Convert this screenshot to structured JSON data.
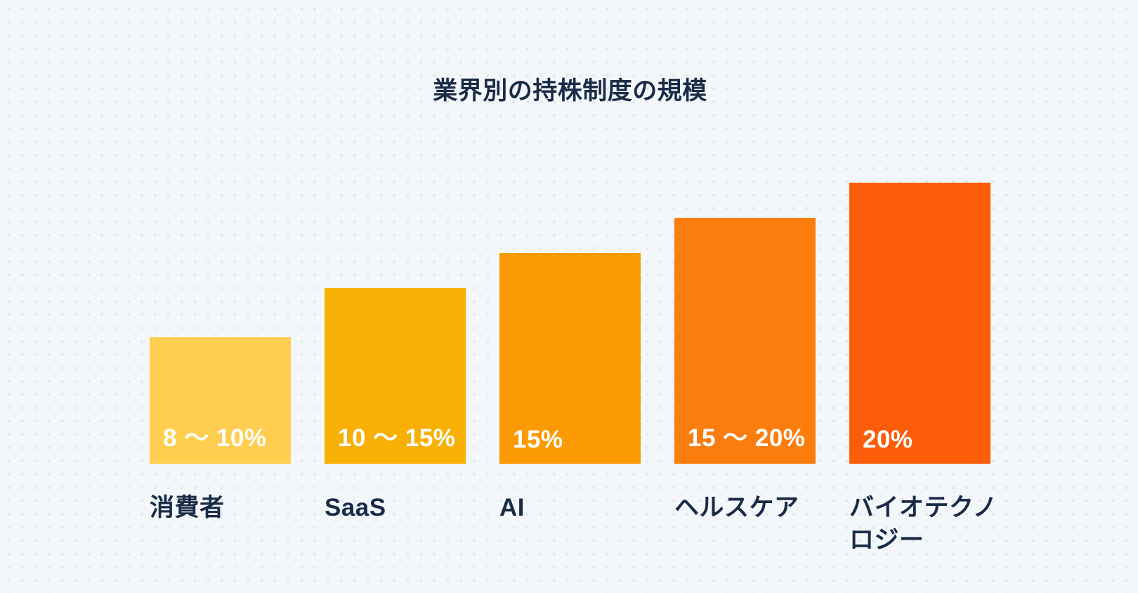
{
  "page": {
    "background_color": "#F4F7FA",
    "dot_pattern_color": "#E4E8EE",
    "text_color": "#192B47",
    "bar_value_label_color": "#FFFFFF"
  },
  "chart_data": {
    "type": "bar",
    "title": "業界別の持株制度の規模",
    "categories": [
      "消費者",
      "SaaS",
      "AI",
      "ヘルスケア",
      "バイオテクノロジー"
    ],
    "values": [
      9,
      12.5,
      15,
      17.5,
      20
    ],
    "value_ranges": [
      [
        8,
        10
      ],
      [
        10,
        15
      ],
      [
        15,
        15
      ],
      [
        15,
        20
      ],
      [
        20,
        20
      ]
    ],
    "value_labels": [
      "8 ～ 10%",
      "10 ～ 15%",
      "15%",
      "15 ～ 20%",
      "20%"
    ],
    "bar_colors": [
      "#FFCE50",
      "#F9B005",
      "#FB9A02",
      "#FB7D0D",
      "#FB5D08"
    ],
    "unit": "%",
    "xlabel": "",
    "ylabel": "",
    "ylim": [
      0,
      20
    ],
    "grid": false,
    "legend": false,
    "orientation": "vertical",
    "value_label_position": "inside-bottom-left",
    "category_label_position": "below-bar-left"
  }
}
